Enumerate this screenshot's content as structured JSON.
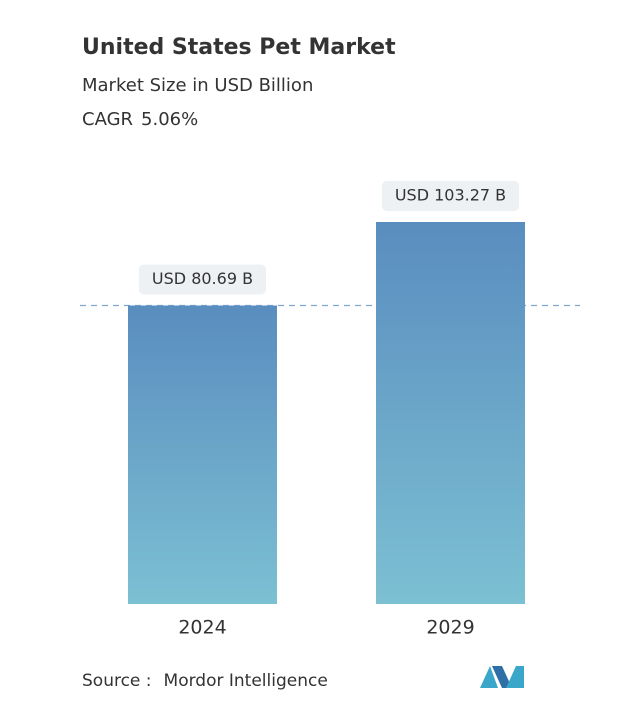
{
  "chart_data": {
    "type": "bar",
    "title": "United States Pet Market",
    "subtitle": "Market Size in USD Billion",
    "cagr": {
      "label": "CAGR",
      "value": "5.06%"
    },
    "categories": [
      "2024",
      "2029"
    ],
    "values": [
      80.69,
      103.27
    ],
    "value_labels": [
      "USD 80.69 B",
      "USD 103.27 B"
    ],
    "color_top": "#5a8dbf",
    "color_bottom": "#7cc0d3",
    "source": {
      "label": "Source :",
      "name": "Mordor Intelligence"
    }
  }
}
